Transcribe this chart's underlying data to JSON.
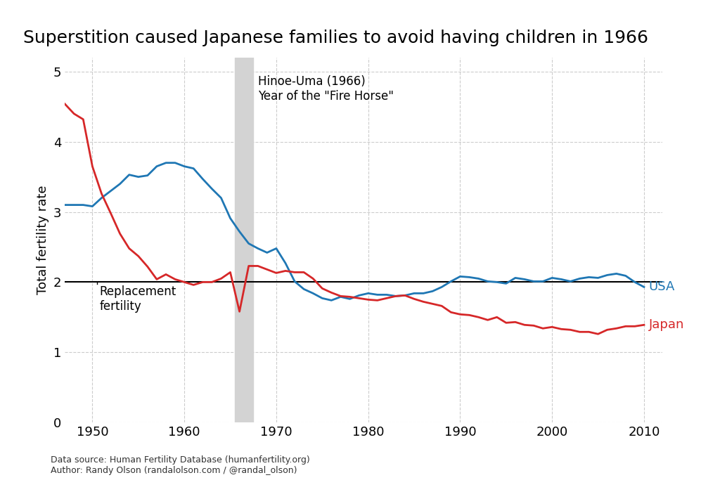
{
  "title": "Superstition caused Japanese families to avoid having children in 1966",
  "ylabel": "Total fertility rate",
  "usa_data": {
    "years": [
      1947,
      1948,
      1949,
      1950,
      1951,
      1952,
      1953,
      1954,
      1955,
      1956,
      1957,
      1958,
      1959,
      1960,
      1961,
      1962,
      1963,
      1964,
      1965,
      1966,
      1967,
      1968,
      1969,
      1970,
      1971,
      1972,
      1973,
      1974,
      1975,
      1976,
      1977,
      1978,
      1979,
      1980,
      1981,
      1982,
      1983,
      1984,
      1985,
      1986,
      1987,
      1988,
      1989,
      1990,
      1991,
      1992,
      1993,
      1994,
      1995,
      1996,
      1997,
      1998,
      1999,
      2000,
      2001,
      2002,
      2003,
      2004,
      2005,
      2006,
      2007,
      2008,
      2009,
      2010
    ],
    "values": [
      3.1,
      3.1,
      3.1,
      3.08,
      3.2,
      3.3,
      3.4,
      3.53,
      3.5,
      3.52,
      3.65,
      3.7,
      3.7,
      3.65,
      3.62,
      3.47,
      3.33,
      3.2,
      2.91,
      2.72,
      2.55,
      2.48,
      2.42,
      2.48,
      2.27,
      2.01,
      1.9,
      1.84,
      1.77,
      1.74,
      1.79,
      1.76,
      1.81,
      1.84,
      1.82,
      1.82,
      1.8,
      1.81,
      1.84,
      1.84,
      1.87,
      1.93,
      2.01,
      2.08,
      2.07,
      2.05,
      2.01,
      2.0,
      1.98,
      2.06,
      2.04,
      2.01,
      2.01,
      2.06,
      2.04,
      2.01,
      2.05,
      2.07,
      2.06,
      2.1,
      2.12,
      2.09,
      2.0,
      1.93
    ]
  },
  "japan_data": {
    "years": [
      1947,
      1948,
      1949,
      1950,
      1951,
      1952,
      1953,
      1954,
      1955,
      1956,
      1957,
      1958,
      1959,
      1960,
      1961,
      1962,
      1963,
      1964,
      1965,
      1966,
      1967,
      1968,
      1969,
      1970,
      1971,
      1972,
      1973,
      1974,
      1975,
      1976,
      1977,
      1978,
      1979,
      1980,
      1981,
      1982,
      1983,
      1984,
      1985,
      1986,
      1987,
      1988,
      1989,
      1990,
      1991,
      1992,
      1993,
      1994,
      1995,
      1996,
      1997,
      1998,
      1999,
      2000,
      2001,
      2002,
      2003,
      2004,
      2005,
      2006,
      2007,
      2008,
      2009,
      2010
    ],
    "values": [
      4.54,
      4.4,
      4.32,
      3.65,
      3.26,
      2.98,
      2.69,
      2.48,
      2.37,
      2.22,
      2.04,
      2.11,
      2.04,
      2.0,
      1.96,
      2.0,
      2.0,
      2.05,
      2.14,
      1.58,
      2.23,
      2.23,
      2.18,
      2.13,
      2.16,
      2.14,
      2.14,
      2.05,
      1.91,
      1.85,
      1.8,
      1.79,
      1.77,
      1.75,
      1.74,
      1.77,
      1.8,
      1.81,
      1.76,
      1.72,
      1.69,
      1.66,
      1.57,
      1.54,
      1.53,
      1.5,
      1.46,
      1.5,
      1.42,
      1.43,
      1.39,
      1.38,
      1.34,
      1.36,
      1.33,
      1.32,
      1.29,
      1.29,
      1.26,
      1.32,
      1.34,
      1.37,
      1.37,
      1.39
    ]
  },
  "usa_color": "#1f77b4",
  "japan_color": "#d62728",
  "replacement_line_y": 2.0,
  "hinoe_uma_x_start": 1965.5,
  "hinoe_uma_x_end": 1967.5,
  "ylim": [
    0,
    5.2
  ],
  "xlim": [
    1947,
    2012
  ],
  "xticks": [
    1950,
    1960,
    1970,
    1980,
    1990,
    2000,
    2010
  ],
  "yticks": [
    0,
    1,
    2,
    3,
    4,
    5
  ],
  "annotation_hinoe": "Hinoe-Uma (1966)\nYear of the \"Fire Horse\"",
  "annotation_replacement": "Replacement\nfertility",
  "label_usa": "USA",
  "label_japan": "Japan",
  "source_text": "Data source: Human Fertility Database (humanfertility.org)\nAuthor: Randy Olson (randalolson.com / @randal_olson)",
  "grid_color": "#cccccc",
  "line_width": 2.0,
  "background_color": "#ffffff",
  "hinoe_shade_color": "#d3d3d3",
  "title_fontsize": 18,
  "axis_fontsize": 13,
  "tick_fontsize": 13,
  "annotation_fontsize": 12,
  "label_fontsize": 13
}
